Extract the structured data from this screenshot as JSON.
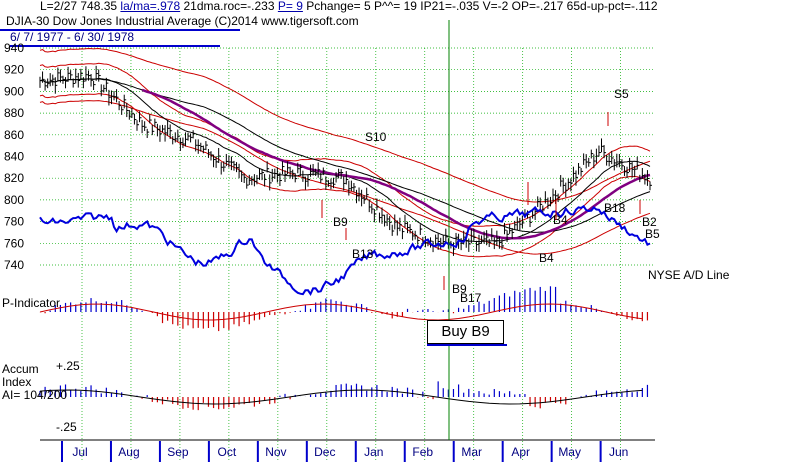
{
  "header": {
    "stats_prefix": "L=2/27  748.35  ",
    "stats_lama": "la/ma=.978",
    "stats_mid": " 21dma.roc=-.233 ",
    "stats_p": "P=  9",
    "stats_suffix": " Pchange=  5 P^^= 19 IP21=-.035 V=-2 OP=-.217 65d-up-pct=-.112",
    "title_index": "DJIA-30  Dow Jones Industrial Average",
    "title_credit": "  (C)2014 www.tigersoft.com",
    "date_range": "6/ 7/ 1977 - 6/ 30/ 1978"
  },
  "panels": {
    "ad_line_label": "NYSE A/D Line",
    "p_indicator_label": "P-Indicator",
    "accum_label_line1": "Accum",
    "accum_label_line2": "Index",
    "accum_label_line3": "AI= 104/200",
    "accum_plus": "+.25",
    "accum_minus": "-.25"
  },
  "buy_box": "Buy B9",
  "signals": [
    {
      "label": "S10",
      "month": "Dec"
    },
    {
      "label": "B9",
      "month": "Dec"
    },
    {
      "label": "B13",
      "month": "Dec"
    },
    {
      "label": "B9",
      "month": "Feb"
    },
    {
      "label": "B17",
      "month": "Feb"
    },
    {
      "label": "B4",
      "month": "Apr"
    },
    {
      "label": "B4",
      "month": "Apr"
    },
    {
      "label": "S5",
      "month": "Jun"
    },
    {
      "label": "B18",
      "month": "Jun"
    },
    {
      "label": "B2",
      "month": "Jun"
    },
    {
      "label": "B5",
      "month": "Jun"
    }
  ],
  "colors": {
    "price": "#000000",
    "bands": "#cc0000",
    "ma_long": "#000000",
    "ma_purple": "#800080",
    "ad_line": "#0000dd",
    "pos_bar": "#0000cc",
    "neg_bar": "#cc0000",
    "vline": "#008000",
    "grid": "#00aa00"
  },
  "chart_data": {
    "type": "line",
    "title": "DJIA-30  Dow Jones Industrial Average",
    "xlabel": "",
    "ylabel": "",
    "ylim": [
      740,
      940
    ],
    "yticks": [
      740,
      760,
      780,
      800,
      820,
      840,
      860,
      880,
      900,
      920,
      940
    ],
    "months": [
      "Jul",
      "Aug",
      "Sep",
      "Oct",
      "Nov",
      "Dec",
      "Jan",
      "Feb",
      "Mar",
      "Apr",
      "May",
      "Jun"
    ],
    "series": [
      {
        "name": "DJIA close",
        "monthly": [
          {
            "month": "Jun-77",
            "value": 910
          },
          {
            "month": "Jul",
            "value": 915
          },
          {
            "month": "Aug",
            "value": 870
          },
          {
            "month": "Sep",
            "value": 855
          },
          {
            "month": "Oct",
            "value": 820
          },
          {
            "month": "Nov",
            "value": 825
          },
          {
            "month": "Dec",
            "value": 820
          },
          {
            "month": "Jan",
            "value": 775
          },
          {
            "month": "Feb",
            "value": 760
          },
          {
            "month": "Mar",
            "value": 760
          },
          {
            "month": "Apr",
            "value": 800
          },
          {
            "month": "May",
            "value": 845
          },
          {
            "month": "Jun",
            "value": 820
          }
        ]
      }
    ],
    "annotations": [
      "S10",
      "B9",
      "B13",
      "B9",
      "B17",
      "B4",
      "B4",
      "S5",
      "B18",
      "B2",
      "B5"
    ]
  }
}
